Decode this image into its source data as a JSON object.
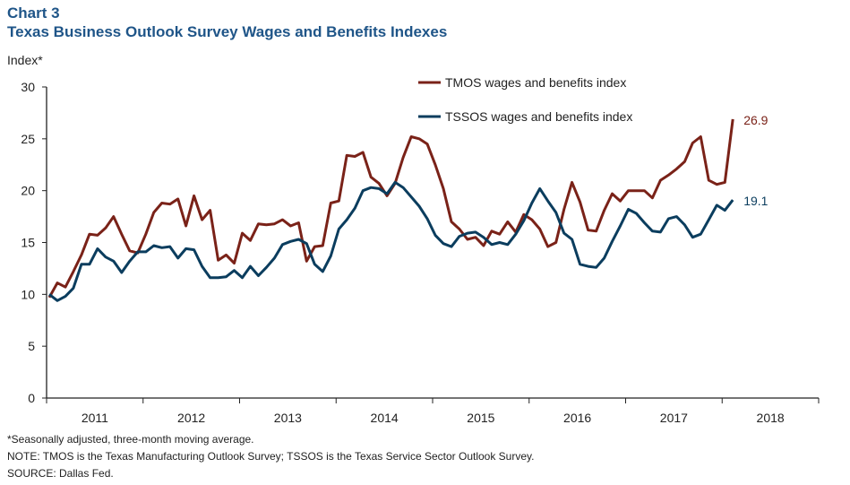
{
  "chart_data": {
    "type": "line",
    "title": "Chart 3",
    "subtitle": "Texas Business Outlook Survey Wages and Benefits Indexes",
    "xlabel": "",
    "ylabel": "Index*",
    "ylim": [
      0,
      30
    ],
    "yticks": [
      0,
      5,
      10,
      15,
      20,
      25,
      30
    ],
    "xticks": [
      "2011",
      "2012",
      "2013",
      "2014",
      "2015",
      "2016",
      "2017",
      "2018"
    ],
    "x_start": "2011-01",
    "x_end": "2018-02",
    "frequency": "monthly",
    "grid": false,
    "legend_position": "top-center",
    "series": [
      {
        "name": "TMOS wages and benefits index",
        "color": "#7a2218",
        "end_label": "26.9",
        "values": [
          9.7,
          11.1,
          10.7,
          12.2,
          13.8,
          15.8,
          15.7,
          16.4,
          17.5,
          15.8,
          14.2,
          14.0,
          15.8,
          17.9,
          18.8,
          18.7,
          19.2,
          16.6,
          19.5,
          17.2,
          18.1,
          13.3,
          13.8,
          13.0,
          15.9,
          15.2,
          16.8,
          16.7,
          16.8,
          17.2,
          16.6,
          16.9,
          13.2,
          14.6,
          14.7,
          18.8,
          19.0,
          23.4,
          23.3,
          23.7,
          21.3,
          20.7,
          19.5,
          20.7,
          23.2,
          25.2,
          25.0,
          24.5,
          22.5,
          20.2,
          17.0,
          16.3,
          15.3,
          15.5,
          14.7,
          16.1,
          15.8,
          17.0,
          16.0,
          17.7,
          17.2,
          16.3,
          14.6,
          15.0,
          18.2,
          20.8,
          18.9,
          16.2,
          16.1,
          18.1,
          19.7,
          19.0,
          20.0,
          20.0,
          20.0,
          19.3,
          21.0,
          21.5,
          22.1,
          22.8,
          24.6,
          25.2,
          21.0,
          20.6,
          20.8,
          26.9
        ]
      },
      {
        "name": "TSSOS wages and benefits index",
        "color": "#0b3d5e",
        "end_label": "19.1",
        "values": [
          10.0,
          9.4,
          9.8,
          10.6,
          12.9,
          12.9,
          14.4,
          13.6,
          13.2,
          12.1,
          13.2,
          14.1,
          14.1,
          14.7,
          14.5,
          14.6,
          13.5,
          14.4,
          14.3,
          12.7,
          11.6,
          11.6,
          11.7,
          12.3,
          11.6,
          12.7,
          11.8,
          12.6,
          13.5,
          14.8,
          15.1,
          15.3,
          14.9,
          12.9,
          12.2,
          13.7,
          16.3,
          17.2,
          18.3,
          20.0,
          20.3,
          20.2,
          19.7,
          20.8,
          20.3,
          19.4,
          18.5,
          17.3,
          15.7,
          14.9,
          14.6,
          15.6,
          15.9,
          16.0,
          15.5,
          14.8,
          15.0,
          14.8,
          15.8,
          17.1,
          18.8,
          20.2,
          19.0,
          17.9,
          15.9,
          15.3,
          12.9,
          12.7,
          12.6,
          13.5,
          15.1,
          16.6,
          18.2,
          17.8,
          16.9,
          16.1,
          16.0,
          17.3,
          17.5,
          16.7,
          15.5,
          15.8,
          17.2,
          18.6,
          18.1,
          19.1
        ]
      }
    ]
  },
  "notes": {
    "footnote": "*Seasonally adjusted, three-month moving average.",
    "note": "NOTE: TMOS is the Texas Manufacturing Outlook Survey; TSSOS is the Texas Service Sector Outlook Survey.",
    "source": "SOURCE: Dallas Fed."
  }
}
